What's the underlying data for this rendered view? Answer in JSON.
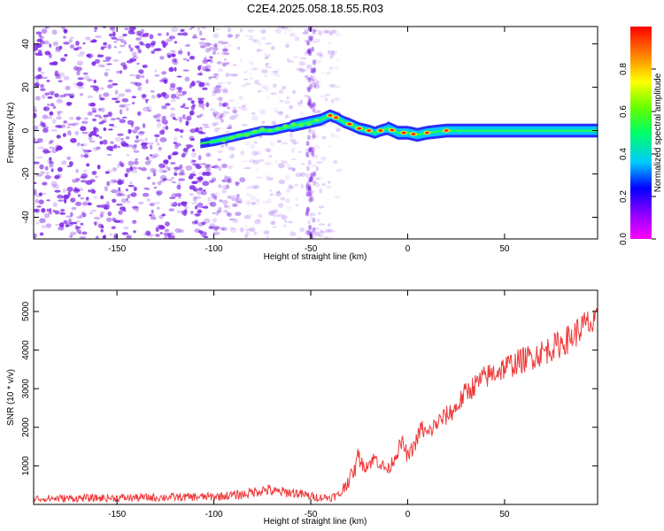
{
  "title": "C2E4.2025.058.18.55.R03",
  "colors": {
    "snr_line": "#ef3a3a",
    "noise": "#7a22e6",
    "axis": "#000000"
  },
  "colorbar": {
    "label": "Normalized spectral amplitude",
    "ticks": [
      {
        "value": 0.0,
        "label": "0.0"
      },
      {
        "value": 0.2,
        "label": "0.2"
      },
      {
        "value": 0.4,
        "label": "0.4"
      },
      {
        "value": 0.6,
        "label": "0.6"
      },
      {
        "value": 0.8,
        "label": "0.8"
      }
    ],
    "range": [
      0,
      1
    ]
  },
  "chart_data": [
    {
      "type": "heatmap",
      "xlabel": "Height of straight line (km)",
      "ylabel": "Frequency (Hz)",
      "xlim": [
        -193,
        98
      ],
      "ylim": [
        -50,
        48
      ],
      "xticks": [
        -150,
        -100,
        -50,
        0,
        50
      ],
      "yticks": [
        -40,
        -20,
        0,
        20,
        40
      ],
      "ridge": {
        "x": [
          -107,
          -100,
          -95,
          -90,
          -85,
          -80,
          -75,
          -70,
          -65,
          -60,
          -55,
          -50,
          -45,
          -40,
          -37,
          -33,
          -30,
          -25,
          -20,
          -17,
          -14,
          -10,
          -5,
          0,
          5,
          10,
          20,
          30,
          50,
          70,
          90,
          96
        ],
        "frequency_hz": [
          -6,
          -5,
          -4,
          -3,
          -2,
          -1,
          0,
          0,
          1,
          2,
          3,
          4,
          5,
          7,
          6,
          4,
          3,
          1,
          0,
          -1,
          0,
          1,
          -1,
          -1,
          -2,
          -1,
          0,
          0,
          0,
          0,
          0,
          0
        ]
      }
    },
    {
      "type": "line",
      "xlabel": "Height of straight line (km)",
      "ylabel": "SNR (10 * v/v)",
      "xlim": [
        -193,
        98
      ],
      "ylim": [
        0,
        5550
      ],
      "xticks": [
        -150,
        -100,
        -50,
        0,
        50
      ],
      "yticks": [
        1000,
        2000,
        3000,
        4000,
        5000
      ],
      "series": [
        {
          "x": [
            -193,
            -150,
            -100,
            -85,
            -80,
            -76,
            -72,
            -68,
            -63,
            -58,
            -50,
            -45,
            -40,
            -35,
            -30,
            -27,
            -25,
            -25,
            -22,
            -19,
            -17,
            -13,
            -10,
            -6,
            -4,
            -3,
            -1,
            0,
            5,
            7,
            10,
            15,
            20,
            25,
            30,
            35,
            40,
            50,
            60,
            70,
            80,
            85,
            88,
            90,
            92,
            94,
            95,
            96,
            97,
            98
          ],
          "y": [
            150,
            170,
            200,
            260,
            320,
            360,
            380,
            320,
            320,
            300,
            210,
            180,
            180,
            250,
            700,
            900,
            1500,
            1100,
            1000,
            1100,
            1200,
            1000,
            900,
            1300,
            1500,
            1600,
            1400,
            1200,
            1700,
            2000,
            1800,
            2100,
            2300,
            2500,
            2900,
            3100,
            3300,
            3550,
            3750,
            3950,
            4200,
            4350,
            4500,
            4600,
            4650,
            4700,
            4600,
            4650,
            4700,
            4700
          ]
        }
      ]
    }
  ]
}
